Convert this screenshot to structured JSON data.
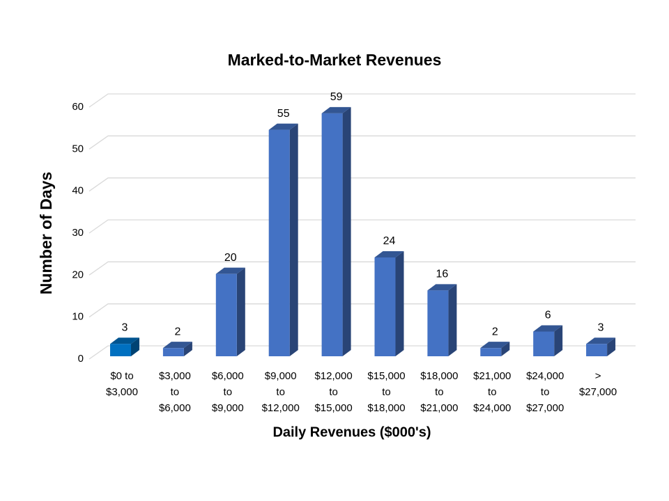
{
  "chart_data": {
    "type": "bar3d",
    "title": "Marked-to-Market Revenues",
    "x_label": "Daily Revenues ($000's)",
    "y_label": "Number of Days",
    "categories": [
      "$0 to\n$3,000",
      "$3,000\nto\n$6,000",
      "$6,000\nto\n$9,000",
      "$9,000\nto\n$12,000",
      "$12,000\nto\n$15,000",
      "$15,000\nto\n$18,000",
      "$18,000\nto\n$21,000",
      "$21,000\nto\n$24,000",
      "$24,000\nto\n$27,000",
      ">\n$27,000"
    ],
    "values": [
      3,
      2,
      20,
      55,
      59,
      24,
      16,
      2,
      6,
      3
    ],
    "colors": [
      "#0070c0",
      "#4472c4",
      "#4472c4",
      "#4472c4",
      "#4472c4",
      "#4472c4",
      "#4472c4",
      "#4472c4",
      "#4472c4",
      "#4472c4"
    ],
    "ylim": [
      0,
      60
    ],
    "yticks": [
      0,
      10,
      20,
      30,
      40,
      50,
      60
    ],
    "grid": true
  }
}
